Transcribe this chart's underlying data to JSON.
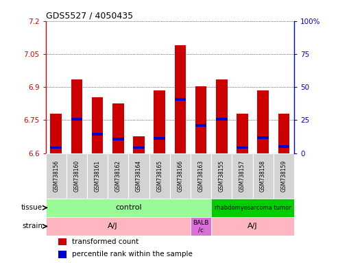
{
  "title": "GDS5527 / 4050435",
  "samples": [
    "GSM738156",
    "GSM738160",
    "GSM738161",
    "GSM738162",
    "GSM738164",
    "GSM738165",
    "GSM738166",
    "GSM738163",
    "GSM738155",
    "GSM738157",
    "GSM738158",
    "GSM738159"
  ],
  "bar_bottoms": [
    6.6,
    6.6,
    6.6,
    6.6,
    6.6,
    6.6,
    6.6,
    6.6,
    6.6,
    6.6,
    6.6,
    6.6
  ],
  "bar_tops": [
    6.78,
    6.935,
    6.855,
    6.825,
    6.675,
    6.885,
    7.09,
    6.905,
    6.935,
    6.78,
    6.885,
    6.78
  ],
  "blue_positions": [
    6.625,
    6.755,
    6.685,
    6.665,
    6.625,
    6.668,
    6.845,
    6.725,
    6.755,
    6.625,
    6.67,
    6.63
  ],
  "ylim_left": [
    6.6,
    7.2
  ],
  "yticks_left": [
    6.6,
    6.75,
    6.9,
    7.05,
    7.2
  ],
  "ylim_right": [
    0,
    100
  ],
  "yticks_right": [
    0,
    25,
    50,
    75,
    100
  ],
  "yticklabels_right": [
    "0",
    "25",
    "50",
    "75",
    "100%"
  ],
  "left_color": "#cc0000",
  "right_color": "#0000cc",
  "bar_color": "#cc0000",
  "blue_color": "#0000cc",
  "grid_color": "#000000",
  "bg_color": "#ffffff",
  "sample_bg": "#d3d3d3",
  "tissue_control_bg": "#98fb98",
  "tissue_tumor_bg": "#00cc00",
  "strain_aj_bg": "#ffb6c1",
  "strain_balb_bg": "#da70d6",
  "legend_items": [
    {
      "color": "#cc0000",
      "label": "transformed count"
    },
    {
      "color": "#0000cc",
      "label": "percentile rank within the sample"
    }
  ]
}
